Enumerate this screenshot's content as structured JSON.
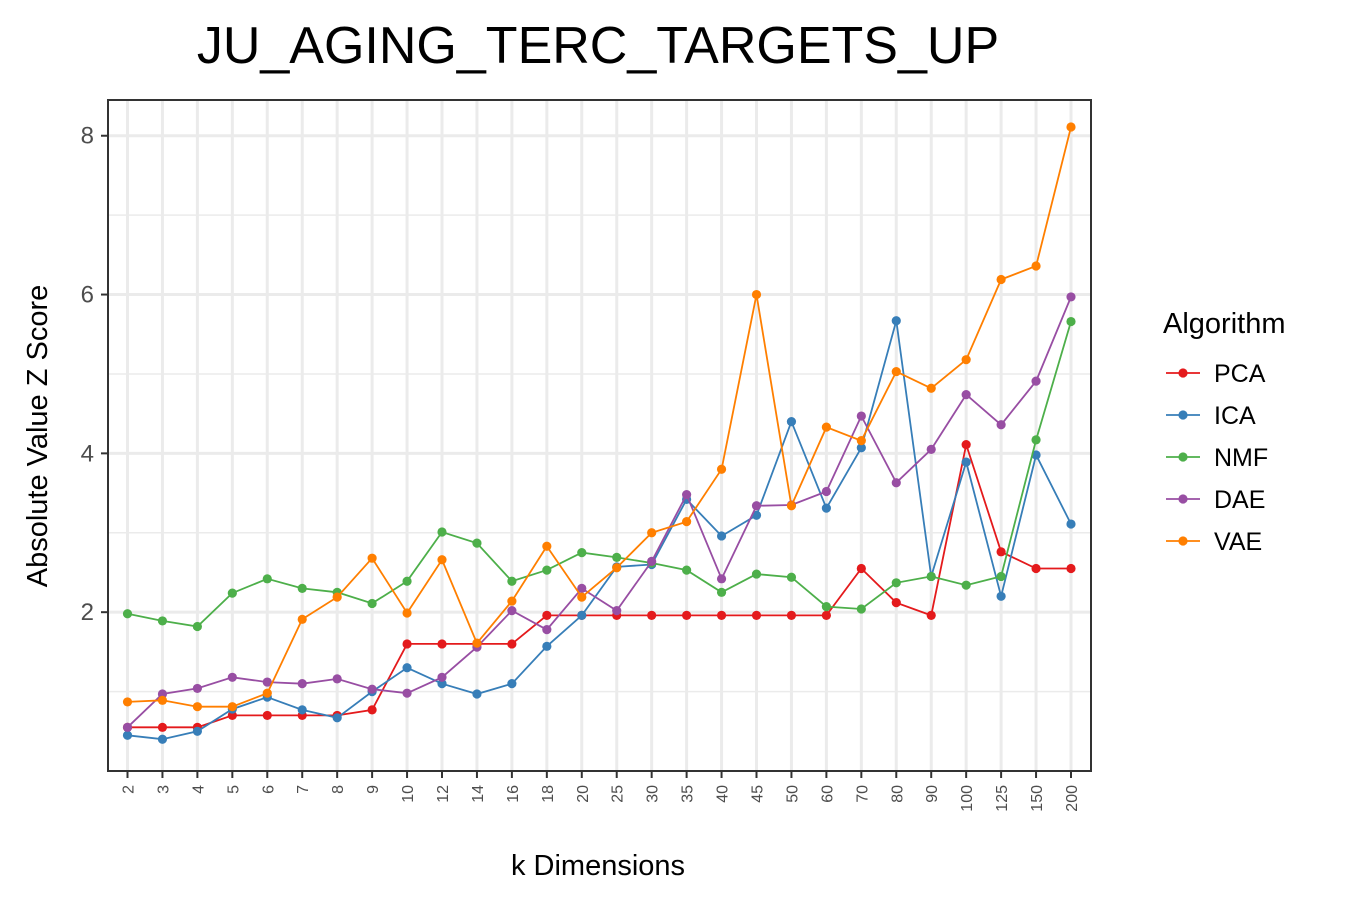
{
  "chart_data": {
    "type": "line",
    "title": "JU_AGING_TERC_TARGETS_UP",
    "xlabel": "k Dimensions",
    "ylabel": "Absolute Value Z Score",
    "categories": [
      "2",
      "3",
      "4",
      "5",
      "6",
      "7",
      "8",
      "9",
      "10",
      "12",
      "14",
      "16",
      "18",
      "20",
      "25",
      "30",
      "35",
      "40",
      "45",
      "50",
      "60",
      "70",
      "80",
      "90",
      "100",
      "125",
      "150",
      "200"
    ],
    "ylim": [
      0,
      8.45
    ],
    "yticks": [
      2,
      4,
      6,
      8
    ],
    "grid": true,
    "legend_title": "Algorithm",
    "legend_position": "right",
    "series": [
      {
        "name": "PCA",
        "color": "#E41A1C",
        "values": [
          0.55,
          0.55,
          0.55,
          0.7,
          0.7,
          0.7,
          0.7,
          0.77,
          1.6,
          1.6,
          1.6,
          1.6,
          1.96,
          1.96,
          1.96,
          1.96,
          1.96,
          1.96,
          1.96,
          1.96,
          1.96,
          2.55,
          2.12,
          1.96,
          4.11,
          2.76,
          2.55,
          2.55
        ]
      },
      {
        "name": "ICA",
        "color": "#377EB8",
        "values": [
          0.45,
          0.4,
          0.5,
          0.78,
          0.93,
          0.77,
          0.67,
          1.0,
          1.3,
          1.1,
          0.97,
          1.1,
          1.57,
          1.96,
          2.57,
          2.6,
          3.42,
          2.96,
          3.22,
          4.4,
          3.31,
          4.07,
          5.67,
          2.45,
          3.89,
          2.2,
          3.98,
          3.11
        ]
      },
      {
        "name": "NMF",
        "color": "#4DAF4A",
        "values": [
          1.98,
          1.89,
          1.82,
          2.24,
          2.42,
          2.3,
          2.25,
          2.11,
          2.39,
          3.01,
          2.87,
          2.39,
          2.53,
          2.75,
          2.69,
          2.62,
          2.53,
          2.25,
          2.48,
          2.44,
          2.07,
          2.04,
          2.37,
          2.45,
          2.34,
          2.45,
          4.17,
          5.66
        ]
      },
      {
        "name": "DAE",
        "color": "#984EA3",
        "values": [
          0.55,
          0.97,
          1.04,
          1.18,
          1.12,
          1.1,
          1.16,
          1.03,
          0.98,
          1.18,
          1.56,
          2.02,
          1.78,
          2.3,
          2.02,
          2.64,
          3.48,
          2.42,
          3.34,
          3.35,
          3.52,
          4.47,
          3.63,
          4.05,
          4.74,
          4.36,
          4.91,
          5.97
        ]
      },
      {
        "name": "VAE",
        "color": "#FF7F00",
        "values": [
          0.87,
          0.89,
          0.81,
          0.81,
          0.98,
          1.91,
          2.19,
          2.68,
          1.99,
          2.66,
          1.61,
          2.14,
          2.83,
          2.19,
          2.56,
          3.0,
          3.14,
          3.8,
          6.0,
          3.34,
          4.33,
          4.16,
          5.03,
          4.82,
          5.18,
          6.19,
          6.36,
          8.11
        ]
      }
    ]
  }
}
